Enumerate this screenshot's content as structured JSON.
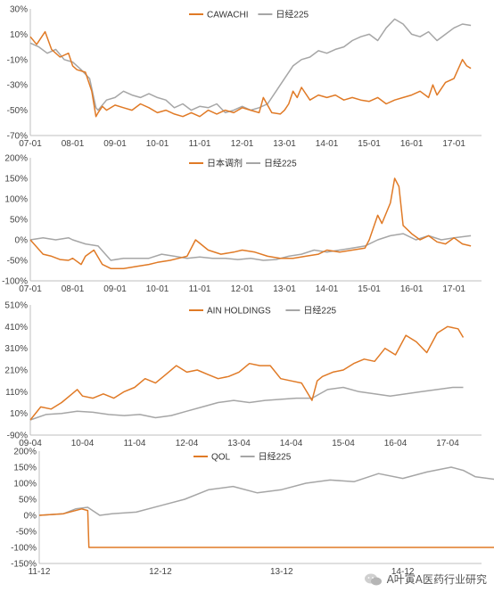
{
  "colors": {
    "orange": "#e07a26",
    "gray": "#a6a6a6"
  },
  "watermark": {
    "icon": "wechat-icon",
    "text": "A叶寅A医药行业研究"
  },
  "chart_data": [
    {
      "type": "line",
      "x_ticks": [
        "07-01",
        "08-01",
        "09-01",
        "10-01",
        "11-01",
        "12-01",
        "13-01",
        "14-01",
        "15-01",
        "16-01",
        "17-01"
      ],
      "y_ticks": [
        "30%",
        "10%",
        "-10%",
        "-30%",
        "-50%",
        "-70%"
      ],
      "ylim": [
        -70,
        30
      ],
      "legend_position": "top-center",
      "series": [
        {
          "name": "CAWACHI",
          "color": "orange",
          "x": [
            0.0,
            0.15,
            0.35,
            0.5,
            0.7,
            0.9,
            1.0,
            1.1,
            1.3,
            1.45,
            1.55,
            1.6,
            1.7,
            1.8,
            2.0,
            2.2,
            2.4,
            2.6,
            2.8,
            3.0,
            3.2,
            3.4,
            3.6,
            3.8,
            4.0,
            4.2,
            4.4,
            4.6,
            4.8,
            5.0,
            5.2,
            5.4,
            5.5,
            5.7,
            5.9,
            6.0,
            6.1,
            6.2,
            6.3,
            6.4,
            6.6,
            6.8,
            7.0,
            7.2,
            7.4,
            7.6,
            7.8,
            8.0,
            8.2,
            8.4,
            8.6,
            8.8,
            9.0,
            9.2,
            9.4,
            9.5,
            9.6,
            9.8,
            10.0,
            10.2,
            10.3,
            10.4
          ],
          "y": [
            8,
            2,
            12,
            -2,
            -8,
            -5,
            -15,
            -18,
            -20,
            -35,
            -55,
            -52,
            -47,
            -50,
            -46,
            -48,
            -50,
            -45,
            -48,
            -52,
            -50,
            -53,
            -55,
            -52,
            -55,
            -50,
            -53,
            -50,
            -52,
            -48,
            -50,
            -52,
            -40,
            -52,
            -53,
            -50,
            -45,
            -35,
            -40,
            -32,
            -42,
            -38,
            -40,
            -38,
            -42,
            -40,
            -42,
            -43,
            -40,
            -45,
            -42,
            -40,
            -38,
            -35,
            -40,
            -30,
            -38,
            -28,
            -25,
            -10,
            -15,
            -17
          ]
        },
        {
          "name": "日经225",
          "color": "gray",
          "x": [
            0.0,
            0.2,
            0.4,
            0.6,
            0.8,
            1.0,
            1.2,
            1.4,
            1.55,
            1.6,
            1.8,
            2.0,
            2.2,
            2.4,
            2.6,
            2.8,
            3.0,
            3.2,
            3.4,
            3.6,
            3.8,
            4.0,
            4.2,
            4.4,
            4.6,
            4.8,
            5.0,
            5.2,
            5.4,
            5.6,
            5.8,
            6.0,
            6.2,
            6.4,
            6.6,
            6.8,
            7.0,
            7.2,
            7.4,
            7.6,
            7.8,
            8.0,
            8.2,
            8.4,
            8.6,
            8.8,
            9.0,
            9.2,
            9.4,
            9.6,
            9.8,
            10.0,
            10.2,
            10.4
          ],
          "y": [
            3,
            0,
            -5,
            -2,
            -10,
            -12,
            -18,
            -25,
            -48,
            -50,
            -42,
            -40,
            -35,
            -38,
            -40,
            -37,
            -40,
            -42,
            -48,
            -45,
            -50,
            -47,
            -48,
            -45,
            -52,
            -50,
            -47,
            -50,
            -48,
            -45,
            -35,
            -25,
            -15,
            -10,
            -8,
            -3,
            -5,
            -2,
            0,
            5,
            8,
            10,
            5,
            15,
            22,
            18,
            10,
            8,
            12,
            5,
            10,
            15,
            18,
            17
          ]
        }
      ]
    },
    {
      "type": "line",
      "x_ticks": [
        "07-01",
        "08-01",
        "09-01",
        "10-01",
        "11-01",
        "12-01",
        "13-01",
        "14-01",
        "15-01",
        "16-01",
        "17-01"
      ],
      "y_ticks": [
        "200%",
        "150%",
        "100%",
        "50%",
        "0%",
        "-50%",
        "-100%"
      ],
      "ylim": [
        -100,
        200
      ],
      "legend_position": "top-center",
      "series": [
        {
          "name": "日本调剂",
          "color": "orange",
          "x": [
            0.0,
            0.3,
            0.5,
            0.7,
            0.9,
            1.0,
            1.2,
            1.3,
            1.5,
            1.7,
            1.9,
            2.2,
            2.5,
            2.8,
            3.0,
            3.3,
            3.5,
            3.7,
            3.9,
            4.2,
            4.5,
            4.8,
            5.0,
            5.3,
            5.6,
            5.9,
            6.2,
            6.5,
            6.8,
            7.0,
            7.3,
            7.6,
            7.9,
            8.0,
            8.2,
            8.3,
            8.5,
            8.6,
            8.7,
            8.8,
            9.0,
            9.2,
            9.4,
            9.6,
            9.8,
            10.0,
            10.2,
            10.4
          ],
          "y": [
            0,
            -35,
            -40,
            -48,
            -50,
            -45,
            -60,
            -40,
            -25,
            -60,
            -70,
            -70,
            -65,
            -60,
            -55,
            -50,
            -45,
            -40,
            0,
            -25,
            -35,
            -30,
            -25,
            -30,
            -40,
            -45,
            -45,
            -40,
            -35,
            -25,
            -30,
            -25,
            -20,
            0,
            60,
            40,
            90,
            150,
            130,
            35,
            15,
            0,
            10,
            -5,
            -10,
            5,
            -10,
            -15
          ]
        },
        {
          "name": "日经225",
          "color": "gray",
          "x": [
            0.0,
            0.3,
            0.6,
            0.9,
            1.0,
            1.3,
            1.6,
            1.9,
            2.2,
            2.5,
            2.8,
            3.1,
            3.4,
            3.7,
            4.0,
            4.3,
            4.6,
            4.9,
            5.2,
            5.5,
            5.8,
            6.1,
            6.4,
            6.7,
            7.0,
            7.3,
            7.6,
            7.9,
            8.2,
            8.5,
            8.8,
            9.1,
            9.4,
            9.7,
            10.0,
            10.4
          ],
          "y": [
            0,
            5,
            0,
            5,
            0,
            -10,
            -15,
            -50,
            -45,
            -45,
            -45,
            -35,
            -40,
            -45,
            -42,
            -45,
            -45,
            -48,
            -45,
            -50,
            -48,
            -40,
            -35,
            -25,
            -30,
            -25,
            -20,
            -15,
            0,
            10,
            15,
            0,
            10,
            0,
            5,
            10
          ]
        }
      ]
    },
    {
      "type": "line",
      "x_ticks": [
        "09-04",
        "10-04",
        "11-04",
        "12-04",
        "13-04",
        "14-04",
        "15-04",
        "16-04",
        "17-04"
      ],
      "y_ticks": [
        "510%",
        "410%",
        "310%",
        "210%",
        "110%",
        "10%",
        "-90%"
      ],
      "ylim": [
        -90,
        510
      ],
      "legend_position": "top-center",
      "series": [
        {
          "name": "AIN HOLDINGS",
          "color": "orange",
          "x": [
            0.0,
            0.2,
            0.4,
            0.6,
            0.8,
            0.9,
            1.0,
            1.2,
            1.4,
            1.6,
            1.8,
            2.0,
            2.2,
            2.4,
            2.6,
            2.8,
            3.0,
            3.2,
            3.4,
            3.6,
            3.8,
            4.0,
            4.2,
            4.4,
            4.6,
            4.8,
            5.0,
            5.2,
            5.4,
            5.5,
            5.6,
            5.8,
            6.0,
            6.2,
            6.4,
            6.6,
            6.8,
            7.0,
            7.2,
            7.4,
            7.6,
            7.8,
            8.0,
            8.2,
            8.3
          ],
          "y": [
            -20,
            40,
            30,
            60,
            100,
            120,
            90,
            80,
            100,
            80,
            110,
            130,
            170,
            150,
            190,
            230,
            200,
            210,
            190,
            170,
            180,
            200,
            240,
            230,
            230,
            170,
            160,
            150,
            70,
            160,
            180,
            200,
            210,
            240,
            260,
            250,
            310,
            280,
            370,
            340,
            290,
            380,
            410,
            400,
            360
          ]
        },
        {
          "name": "日经225",
          "color": "gray",
          "x": [
            0.0,
            0.3,
            0.6,
            0.9,
            1.2,
            1.5,
            1.8,
            2.1,
            2.4,
            2.7,
            3.0,
            3.3,
            3.6,
            3.9,
            4.2,
            4.5,
            4.8,
            5.1,
            5.4,
            5.7,
            6.0,
            6.3,
            6.6,
            6.9,
            7.2,
            7.5,
            7.8,
            8.1,
            8.3
          ],
          "y": [
            -20,
            5,
            10,
            20,
            15,
            5,
            0,
            5,
            -10,
            0,
            20,
            40,
            60,
            70,
            60,
            70,
            75,
            80,
            80,
            120,
            130,
            110,
            100,
            90,
            100,
            110,
            120,
            130,
            130
          ]
        }
      ]
    },
    {
      "type": "line",
      "x_ticks": [
        "11-12",
        "12-12",
        "13-12",
        "14-12"
      ],
      "y_ticks": [
        "200%",
        "150%",
        "100%",
        "50%",
        "0%",
        "-50%",
        "-100%",
        "-150%"
      ],
      "ylim": [
        -150,
        200
      ],
      "legend_position": "top-center",
      "series": [
        {
          "name": "QOL",
          "color": "orange",
          "x": [
            0.0,
            0.2,
            0.35,
            0.4,
            0.41,
            1.0,
            2.0,
            3.0,
            4.0,
            5.0,
            5.8
          ],
          "y": [
            0,
            5,
            20,
            15,
            -100,
            -100,
            -100,
            -100,
            -100,
            -100,
            -100
          ]
        },
        {
          "name": "日经225",
          "color": "gray",
          "x": [
            0.0,
            0.2,
            0.3,
            0.4,
            0.5,
            0.6,
            0.8,
            1.0,
            1.2,
            1.4,
            1.6,
            1.8,
            2.0,
            2.2,
            2.4,
            2.6,
            2.8,
            3.0,
            3.2,
            3.4,
            3.5,
            3.6,
            3.8,
            4.0,
            4.2,
            4.4,
            4.6,
            4.8,
            5.0,
            5.2,
            5.4,
            5.6,
            5.8
          ],
          "y": [
            0,
            5,
            20,
            25,
            0,
            5,
            10,
            30,
            50,
            80,
            90,
            70,
            80,
            100,
            110,
            105,
            130,
            115,
            135,
            150,
            140,
            120,
            110,
            100,
            95,
            120,
            110,
            100,
            115,
            120,
            125,
            135,
            140
          ]
        }
      ]
    }
  ]
}
